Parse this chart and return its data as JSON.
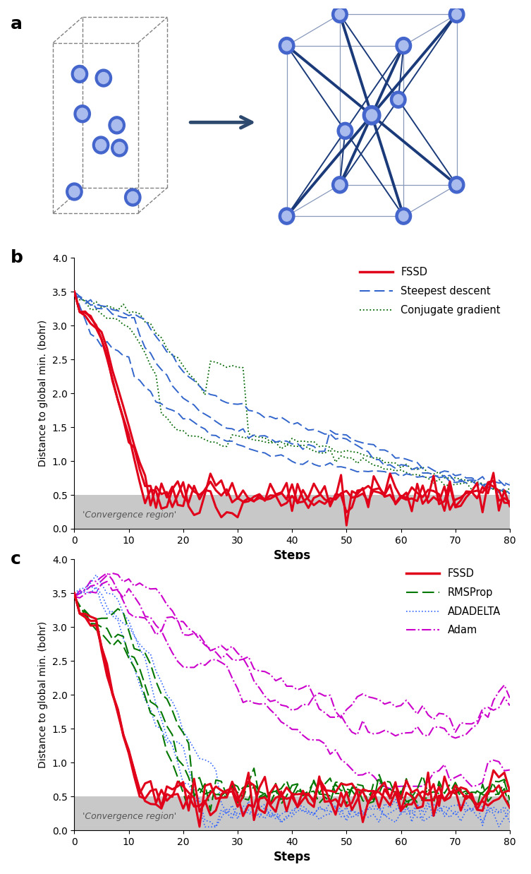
{
  "xlabel": "Steps",
  "ylabel": "Distance to global min. (bohr)",
  "xlim": [
    0,
    80
  ],
  "ylim": [
    0,
    4.0
  ],
  "yticks": [
    0,
    0.5,
    1.0,
    1.5,
    2.0,
    2.5,
    3.0,
    3.5,
    4.0
  ],
  "xticks": [
    0,
    10,
    20,
    30,
    40,
    50,
    60,
    70,
    80
  ],
  "convergence_region": 0.5,
  "convergence_color": "#c8c8c8",
  "convergence_text": "'Convergence region'",
  "fssd_color": "#e0001a",
  "steep_color": "#3366cc",
  "conjgrad_color": "#006600",
  "rmsprop_color": "#007700",
  "adadelta_color": "#3366ff",
  "adam_color": "#cc00cc",
  "background_color": "#ffffff"
}
